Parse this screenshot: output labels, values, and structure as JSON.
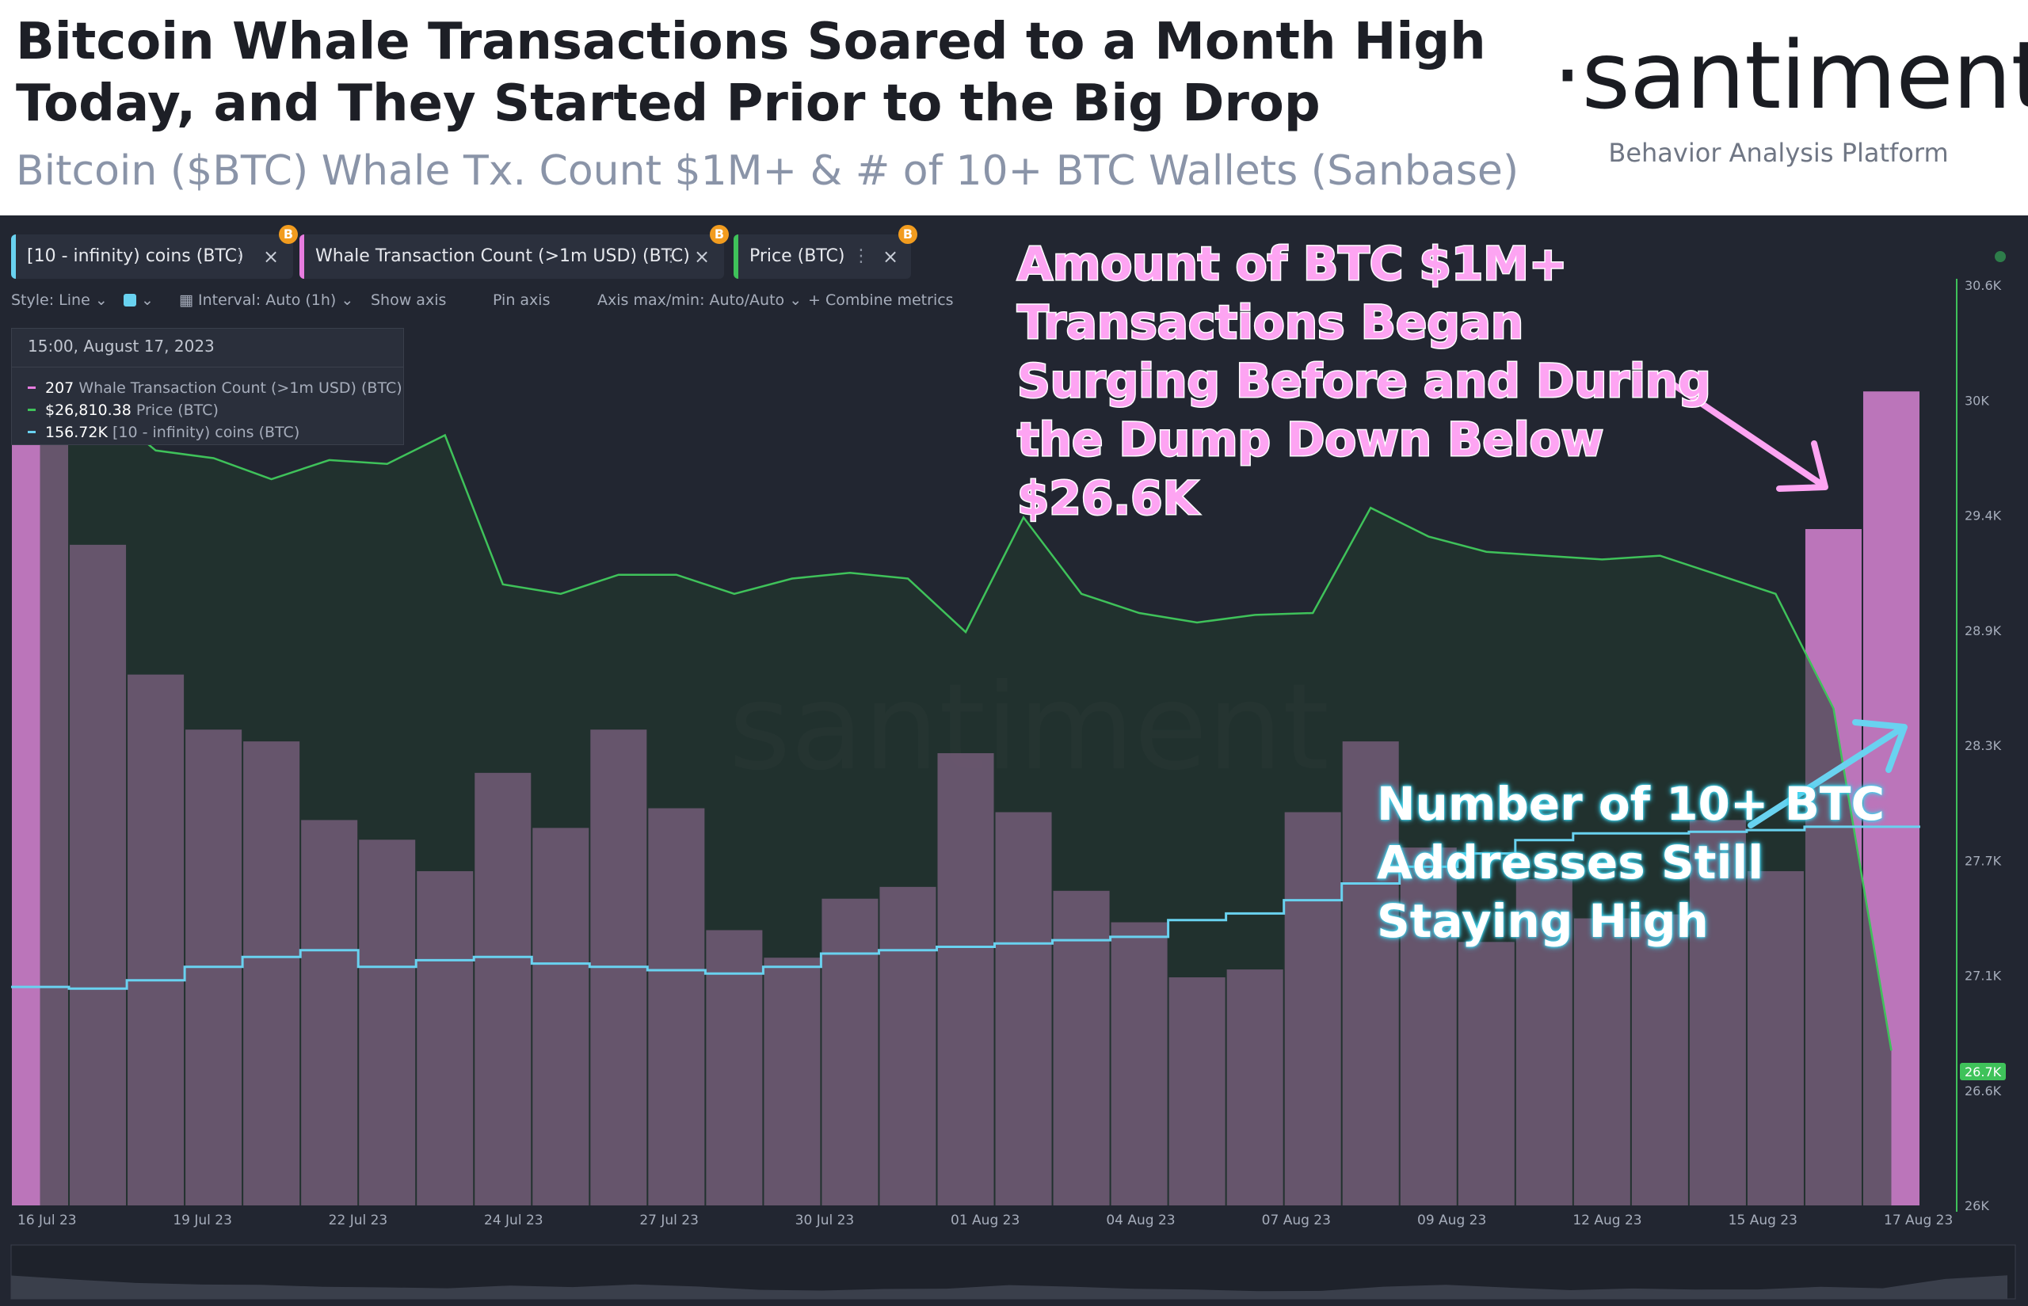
{
  "header": {
    "title": "Bitcoin Whale Transactions Soared to a Month High Today, and They Started Prior to the Big Drop",
    "subtitle": "Bitcoin ($BTC) Whale Tx. Count $1M+ & # of 10+ BTC Wallets (Sanbase)",
    "brand": "·santiment·",
    "brand_tagline": "Behavior Analysis Platform"
  },
  "tabs": [
    {
      "label": "[10 - infinity) coins (BTC)",
      "color": "#69d2f0",
      "badge": "B"
    },
    {
      "label": "Whale Transaction Count (>1m USD) (BTC)",
      "color": "#e87ce0",
      "badge": "B"
    },
    {
      "label": "Price (BTC)",
      "color": "#3fc25a",
      "badge": "B"
    }
  ],
  "toolbar": {
    "style": "Style: Line",
    "interval": "Interval: Auto (1h)",
    "show_axis": "Show axis",
    "pin_axis": "Pin axis",
    "axis_minmax": "Axis max/min: Auto/Auto",
    "combine": "Combine metrics"
  },
  "tooltip": {
    "date": "15:00, August 17, 2023",
    "rows": [
      {
        "value": "207",
        "label": "Whale Transaction Count (>1m USD) (BTC)",
        "color": "#e87ce0"
      },
      {
        "value": "$26,810.38",
        "label": "Price (BTC)",
        "color": "#3fc25a"
      },
      {
        "value": "156.72K",
        "label": "[10 - infinity) coins (BTC)",
        "color": "#69d2f0"
      }
    ]
  },
  "annotations": {
    "pink": "Amount of BTC $1M+ Transactions Began Surging Before and During the Dump Down Below $26.6K",
    "cyan": "Number of 10+ BTC Addresses Still Staying High"
  },
  "watermark": "santiment",
  "colors": {
    "background": "#222631",
    "whale_bars": "#c97cc6",
    "price_line": "#3fc25a",
    "price_fill": "#213a2c",
    "holders_line": "#69d2f0",
    "annotation_pink": "#fda4f2"
  },
  "chart_data": {
    "type": "bar",
    "x_ticks": [
      "16 Jul 23",
      "19 Jul 23",
      "22 Jul 23",
      "24 Jul 23",
      "27 Jul 23",
      "30 Jul 23",
      "01 Aug 23",
      "04 Aug 23",
      "07 Aug 23",
      "09 Aug 23",
      "12 Aug 23",
      "15 Aug 23",
      "17 Aug 23"
    ],
    "y_right_ticks": [
      "30.6K",
      "30K",
      "29.4K",
      "28.9K",
      "28.3K",
      "27.7K",
      "27.1K",
      "26.6K",
      "26K"
    ],
    "price_label": "26.7K",
    "price_ylim": [
      26000,
      30600
    ],
    "x": [
      "2023-07-16",
      "2023-07-17",
      "2023-07-18",
      "2023-07-19",
      "2023-07-20",
      "2023-07-21",
      "2023-07-22",
      "2023-07-23",
      "2023-07-24",
      "2023-07-25",
      "2023-07-26",
      "2023-07-27",
      "2023-07-28",
      "2023-07-29",
      "2023-07-30",
      "2023-07-31",
      "2023-08-01",
      "2023-08-02",
      "2023-08-03",
      "2023-08-04",
      "2023-08-05",
      "2023-08-06",
      "2023-08-07",
      "2023-08-08",
      "2023-08-09",
      "2023-08-10",
      "2023-08-11",
      "2023-08-12",
      "2023-08-13",
      "2023-08-14",
      "2023-08-15",
      "2023-08-16",
      "2023-08-17"
    ],
    "series": [
      {
        "name": "Whale Transaction Count (>1m USD) (BTC)",
        "axis": "hidden",
        "style": "bar",
        "values": [
          205,
          168,
          135,
          121,
          118,
          98,
          93,
          85,
          110,
          96,
          121,
          101,
          70,
          63,
          78,
          81,
          115,
          100,
          80,
          72,
          58,
          60,
          100,
          118,
          91,
          67,
          83,
          73,
          74,
          98,
          85,
          172,
          207
        ]
      },
      {
        "name": "Price (BTC)",
        "axis": "right",
        "style": "line",
        "values": [
          30290,
          30200,
          29950,
          29910,
          29800,
          29900,
          29880,
          30030,
          29250,
          29200,
          29300,
          29300,
          29200,
          29280,
          29310,
          29280,
          29000,
          29600,
          29200,
          29100,
          29050,
          29090,
          29100,
          29650,
          29500,
          29420,
          29400,
          29380,
          29400,
          29300,
          29200,
          28600,
          26810
        ]
      },
      {
        "name": "[10 - infinity) coins (BTC)",
        "axis": "hidden",
        "style": "line",
        "values": [
          156240,
          156235,
          156260,
          156300,
          156330,
          156350,
          156300,
          156320,
          156330,
          156310,
          156300,
          156290,
          156280,
          156300,
          156340,
          156350,
          156360,
          156370,
          156380,
          156390,
          156440,
          156460,
          156500,
          156550,
          156600,
          156640,
          156680,
          156700,
          156700,
          156705,
          156710,
          156720,
          156720
        ]
      }
    ],
    "grid": false,
    "legend": "top-left tabs"
  }
}
